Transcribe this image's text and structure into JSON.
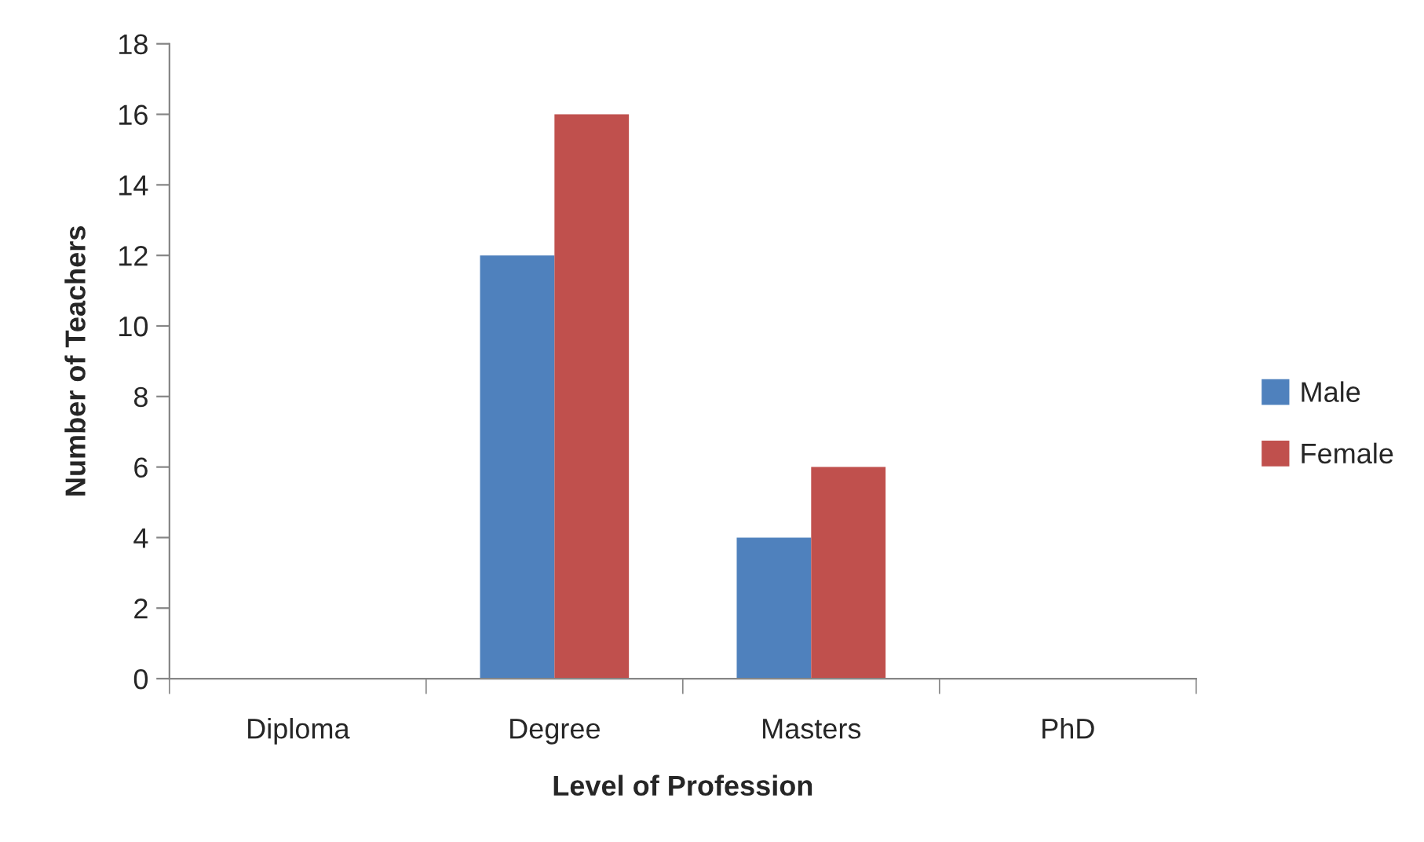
{
  "chart_data": {
    "type": "bar",
    "xlabel": "Level of Profession",
    "ylabel": "Number of Teachers",
    "categories": [
      "Diploma",
      "Degree",
      "Masters",
      "PhD"
    ],
    "series": [
      {
        "name": "Male",
        "color": "#4f81bd",
        "values": [
          0,
          12,
          4,
          0
        ]
      },
      {
        "name": "Female",
        "color": "#c0504d",
        "values": [
          0,
          16,
          6,
          0
        ]
      }
    ],
    "ylim": [
      0,
      18
    ],
    "yticks": [
      0,
      2,
      4,
      6,
      8,
      10,
      12,
      14,
      16,
      18
    ],
    "grid": false,
    "legend": "right"
  }
}
